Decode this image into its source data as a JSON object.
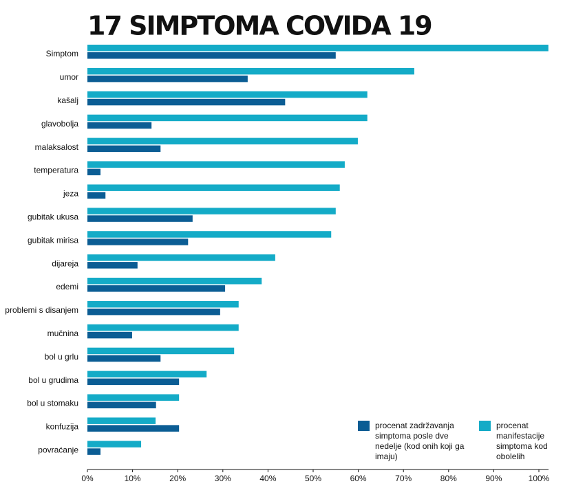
{
  "chart_data": {
    "type": "hbar",
    "title": "17 SIMPTOMA COVIDA 19",
    "categories": [
      "Simptom",
      "umor",
      "kašalj",
      "glavobolja",
      "malaksalost",
      "temperatura",
      "jeza",
      "gubitak ukusa",
      "gubitak mirisa",
      "dijareja",
      "edemi",
      "problemi s disanjem",
      "mučnina",
      "bol u grlu",
      "bol u grudima",
      "bol u stomaku",
      "konfuzija",
      "povraćanje"
    ],
    "series": [
      {
        "name": "procenat zadržavanja simptoma posle dve nedelje (kod onih koji ga imaju)",
        "color": "#0b5d94",
        "values": [
          55.0,
          35.5,
          43.8,
          14.2,
          16.2,
          2.9,
          4.0,
          23.3,
          22.3,
          11.1,
          30.5,
          29.4,
          9.9,
          16.2,
          20.3,
          15.2,
          20.3,
          2.9
        ]
      },
      {
        "name": "procenat manifestacije simptoma kod obolelih",
        "color": "#14abc7",
        "values": [
          102.1,
          72.4,
          62.0,
          62.0,
          59.9,
          57.0,
          55.9,
          55.0,
          54.0,
          41.6,
          38.6,
          33.5,
          33.5,
          32.5,
          26.4,
          20.3,
          15.1,
          11.9
        ]
      }
    ],
    "xlim": [
      0,
      100
    ],
    "xticks": [
      {
        "value": 0,
        "label": "0%"
      },
      {
        "value": 10,
        "label": "10%"
      },
      {
        "value": 20,
        "label": "20%"
      },
      {
        "value": 30,
        "label": "30%"
      },
      {
        "value": 40,
        "label": "40%"
      },
      {
        "value": 50,
        "label": "50%"
      },
      {
        "value": 60,
        "label": "60%"
      },
      {
        "value": 70,
        "label": "70%"
      },
      {
        "value": 80,
        "label": "80%"
      },
      {
        "value": 90,
        "label": "90%"
      },
      {
        "value": 100,
        "label": "100%"
      }
    ],
    "grid": false
  }
}
